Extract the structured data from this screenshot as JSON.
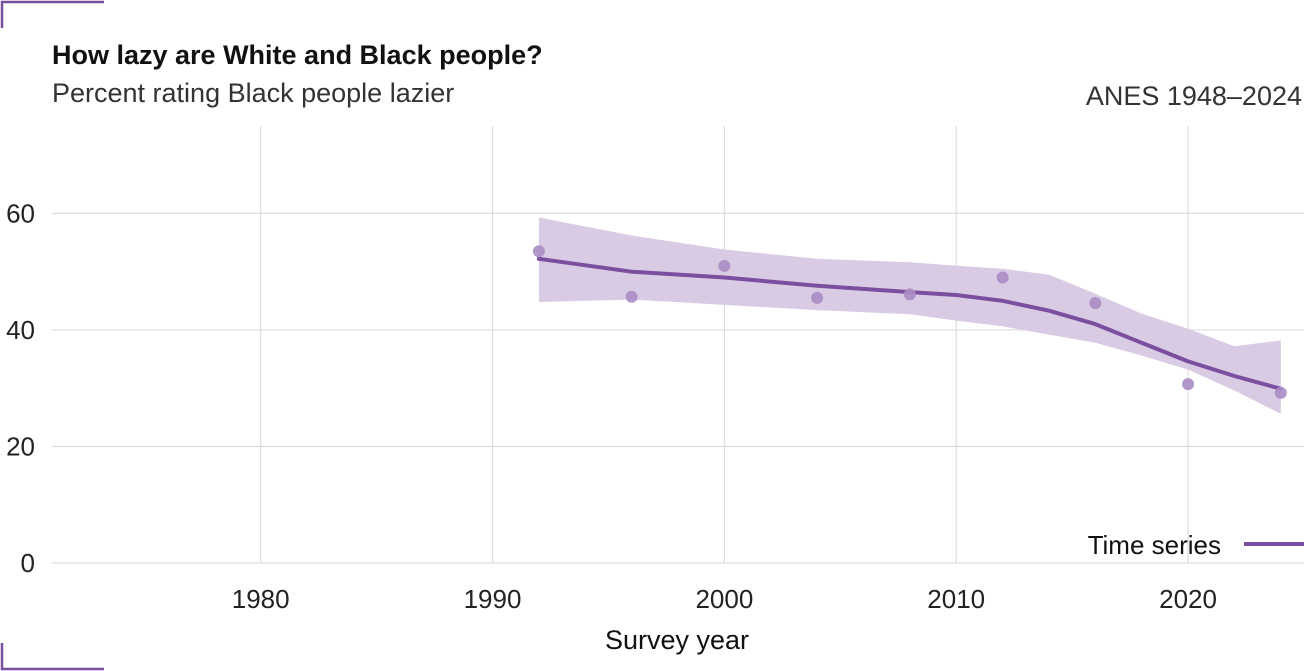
{
  "chart_data": {
    "type": "line",
    "title": "How lazy are White and Black people?",
    "subtitle": "Percent rating Black people lazier",
    "source_label": "ANES 1948–2024",
    "xlabel": "Survey year",
    "ylabel": "",
    "xlim": [
      1971,
      2025
    ],
    "ylim": [
      0,
      75
    ],
    "x_ticks": [
      1980,
      1990,
      2000,
      2010,
      2020
    ],
    "y_ticks": [
      0,
      20,
      40,
      60
    ],
    "grid": true,
    "legend_position": "bottom-right",
    "accent_color": "#7b4fa0",
    "band_color": "#d7c8e3",
    "series": [
      {
        "name": "Time series",
        "kind": "points",
        "x": [
          1992,
          1996,
          2000,
          2004,
          2008,
          2012,
          2016,
          2020,
          2024
        ],
        "y": [
          53.5,
          45.7,
          51.0,
          45.5,
          46.1,
          49.0,
          44.6,
          30.7,
          29.2
        ]
      },
      {
        "name": "Time series",
        "kind": "smoothed",
        "x": [
          1992,
          1996,
          2000,
          2004,
          2008,
          2010,
          2012,
          2014,
          2016,
          2018,
          2020,
          2022,
          2024
        ],
        "y": [
          52.2,
          50.0,
          49.0,
          47.6,
          46.5,
          46.0,
          45.0,
          43.3,
          41.0,
          37.8,
          34.6,
          32.1,
          29.9
        ],
        "lower": [
          44.8,
          45.2,
          44.3,
          43.4,
          42.7,
          41.6,
          40.6,
          39.2,
          37.8,
          35.6,
          33.2,
          29.6,
          25.6
        ],
        "upper": [
          59.3,
          56.2,
          53.8,
          52.2,
          51.6,
          51.0,
          50.5,
          49.5,
          46.2,
          42.8,
          40.2,
          37.2,
          38.2
        ]
      }
    ],
    "legend": [
      {
        "label": "Time series"
      }
    ]
  }
}
